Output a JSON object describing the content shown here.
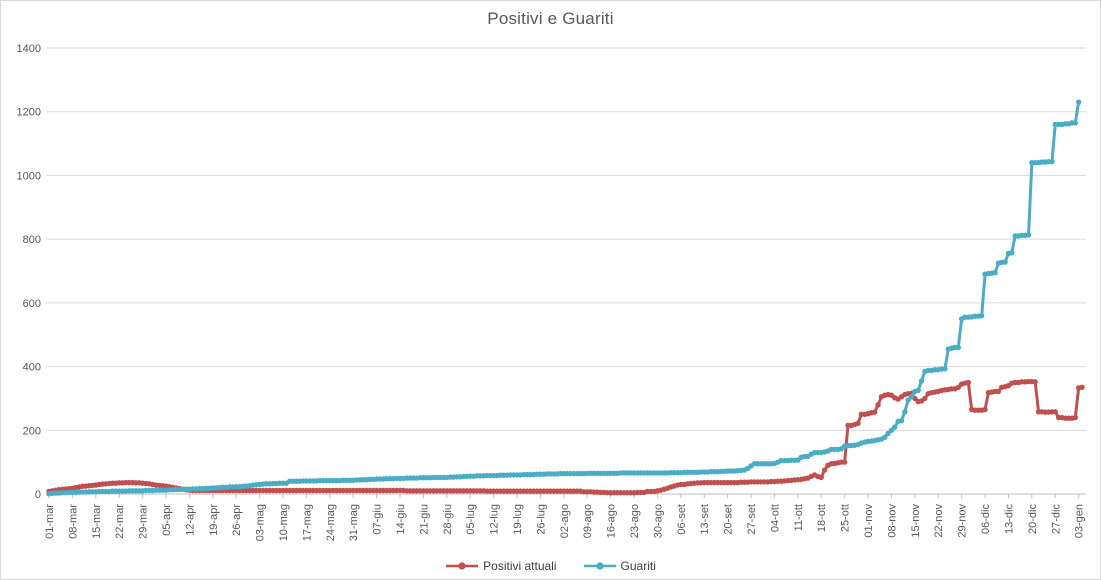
{
  "chart_data": {
    "type": "line",
    "title": "Positivi e Guariti",
    "xlabel": "",
    "ylabel": "",
    "ylim": [
      0,
      1400
    ],
    "y_ticks": [
      0,
      200,
      400,
      600,
      800,
      1000,
      1200,
      1400
    ],
    "grid": "horizontal",
    "legend_position": "bottom",
    "x_is_daily_from": "01-mar",
    "x_tick_every_days": 7,
    "x_tick_labels": [
      "01-mar",
      "08-mar",
      "15-mar",
      "22-mar",
      "29-mar",
      "05-apr",
      "12-apr",
      "19-apr",
      "26-apr",
      "03-mag",
      "10-mag",
      "17-mag",
      "24-mag",
      "31-mag",
      "07-giu",
      "14-giu",
      "21-giu",
      "28-giu",
      "05-lug",
      "12-lug",
      "19-lug",
      "26-lug",
      "02-ago",
      "09-ago",
      "16-ago",
      "23-ago",
      "30-ago",
      "06-set",
      "13-set",
      "20-set",
      "27-set",
      "04-ott",
      "11-ott",
      "18-ott",
      "25-ott",
      "01-nov",
      "08-nov",
      "15-nov",
      "22-nov",
      "29-nov",
      "06-dic",
      "13-dic",
      "20-dic",
      "27-dic",
      "03-gen"
    ],
    "series": [
      {
        "name": "Positivi attuali",
        "color": "#C0504D",
        "values": [
          8,
          10,
          12,
          14,
          15,
          16,
          17,
          18,
          20,
          22,
          24,
          25,
          26,
          27,
          28,
          30,
          31,
          32,
          33,
          34,
          34,
          35,
          35,
          36,
          36,
          36,
          35,
          35,
          34,
          33,
          32,
          30,
          28,
          27,
          26,
          25,
          23,
          21,
          19,
          17,
          15,
          13,
          12,
          11,
          11,
          11,
          11,
          11,
          11,
          11,
          11,
          11,
          11,
          11,
          11,
          11,
          11,
          11,
          11,
          11,
          11,
          11,
          11,
          11,
          11,
          11,
          11,
          11,
          11,
          11,
          11,
          11,
          11,
          11,
          11,
          11,
          11,
          11,
          11,
          11,
          11,
          11,
          11,
          11,
          11,
          11,
          11,
          11,
          11,
          11,
          11,
          11,
          11,
          11,
          11,
          11,
          11,
          11,
          11,
          11,
          11,
          11,
          11,
          11,
          11,
          11,
          11,
          10,
          10,
          10,
          10,
          10,
          10,
          10,
          10,
          10,
          10,
          10,
          10,
          10,
          10,
          10,
          10,
          10,
          10,
          10,
          10,
          10,
          10,
          10,
          10,
          9,
          9,
          9,
          9,
          9,
          9,
          9,
          9,
          9,
          9,
          9,
          9,
          9,
          9,
          9,
          9,
          9,
          9,
          9,
          9,
          9,
          9,
          9,
          9,
          9,
          9,
          9,
          9,
          9,
          7,
          7,
          7,
          6,
          6,
          5,
          5,
          4,
          4,
          4,
          4,
          4,
          4,
          4,
          4,
          4,
          5,
          5,
          5,
          8,
          8,
          8,
          10,
          12,
          15,
          18,
          22,
          25,
          28,
          30,
          30,
          32,
          33,
          34,
          35,
          35,
          36,
          36,
          36,
          36,
          36,
          36,
          36,
          36,
          36,
          36,
          36,
          37,
          37,
          37,
          38,
          38,
          38,
          38,
          38,
          38,
          39,
          39,
          40,
          40,
          41,
          42,
          43,
          44,
          45,
          46,
          48,
          50,
          55,
          60,
          55,
          52,
          75,
          90,
          95,
          96,
          98,
          100,
          100,
          215,
          215,
          218,
          222,
          250,
          250,
          252,
          255,
          257,
          280,
          305,
          310,
          312,
          310,
          302,
          298,
          305,
          312,
          315,
          316,
          300,
          290,
          292,
          300,
          315,
          318,
          320,
          322,
          325,
          327,
          328,
          330,
          330,
          335,
          345,
          348,
          350,
          265,
          263,
          263,
          263,
          265,
          318,
          320,
          322,
          322,
          335,
          337,
          340,
          348,
          350,
          350,
          352,
          352,
          353,
          353,
          352,
          258,
          258,
          257,
          257,
          258,
          258,
          240,
          240,
          238,
          238,
          238,
          240,
          333,
          335
        ]
      },
      {
        "name": "Guariti",
        "color": "#4BACC6",
        "values": [
          1,
          2,
          3,
          3,
          4,
          4,
          5,
          5,
          5,
          6,
          6,
          6,
          7,
          7,
          7,
          8,
          8,
          8,
          8,
          9,
          9,
          9,
          9,
          9,
          10,
          10,
          10,
          10,
          10,
          11,
          11,
          11,
          12,
          12,
          12,
          12,
          13,
          13,
          14,
          14,
          15,
          15,
          15,
          16,
          16,
          17,
          17,
          18,
          18,
          19,
          19,
          20,
          21,
          21,
          22,
          22,
          23,
          23,
          24,
          25,
          26,
          28,
          29,
          30,
          31,
          32,
          32,
          33,
          33,
          34,
          34,
          34,
          40,
          40,
          40,
          40,
          41,
          41,
          41,
          41,
          41,
          42,
          42,
          42,
          42,
          42,
          42,
          42,
          43,
          43,
          43,
          43,
          44,
          44,
          45,
          45,
          46,
          46,
          47,
          47,
          47,
          48,
          48,
          48,
          49,
          49,
          49,
          50,
          50,
          50,
          50,
          51,
          51,
          51,
          51,
          52,
          52,
          52,
          52,
          52,
          53,
          53,
          54,
          54,
          55,
          55,
          56,
          56,
          57,
          57,
          57,
          58,
          58,
          58,
          58,
          59,
          59,
          59,
          60,
          60,
          60,
          60,
          61,
          61,
          61,
          61,
          62,
          62,
          62,
          63,
          63,
          63,
          63,
          64,
          64,
          64,
          64,
          64,
          64,
          64,
          64,
          65,
          65,
          65,
          65,
          65,
          65,
          65,
          65,
          65,
          65,
          66,
          66,
          66,
          66,
          66,
          66,
          66,
          66,
          66,
          66,
          66,
          66,
          66,
          66,
          66,
          67,
          67,
          67,
          67,
          68,
          68,
          68,
          68,
          68,
          69,
          69,
          69,
          70,
          70,
          70,
          71,
          71,
          72,
          72,
          72,
          73,
          74,
          75,
          80,
          88,
          95,
          95,
          95,
          95,
          95,
          95,
          96,
          100,
          105,
          105,
          105,
          106,
          106,
          106,
          115,
          118,
          118,
          125,
          130,
          130,
          130,
          132,
          135,
          140,
          140,
          140,
          142,
          150,
          152,
          152,
          153,
          155,
          160,
          163,
          165,
          166,
          168,
          170,
          172,
          178,
          190,
          200,
          210,
          228,
          230,
          258,
          295,
          305,
          322,
          325,
          355,
          385,
          388,
          388,
          390,
          390,
          392,
          393,
          455,
          458,
          460,
          460,
          550,
          555,
          555,
          556,
          558,
          558,
          560,
          690,
          692,
          693,
          695,
          725,
          727,
          728,
          755,
          757,
          810,
          810,
          812,
          812,
          813,
          1040,
          1040,
          1040,
          1042,
          1042,
          1043,
          1043,
          1160,
          1160,
          1160,
          1162,
          1162,
          1165,
          1165,
          1230
        ]
      }
    ]
  },
  "legend": {
    "items": [
      {
        "label": "Positivi attuali",
        "color": "#C0504D"
      },
      {
        "label": "Guariti",
        "color": "#4BACC6"
      }
    ]
  },
  "colors": {
    "grid": "#D9D9D9",
    "axis": "#BFBFBF",
    "text": "#595959",
    "border": "#D9D9D9",
    "background": "#FFFFFF"
  }
}
